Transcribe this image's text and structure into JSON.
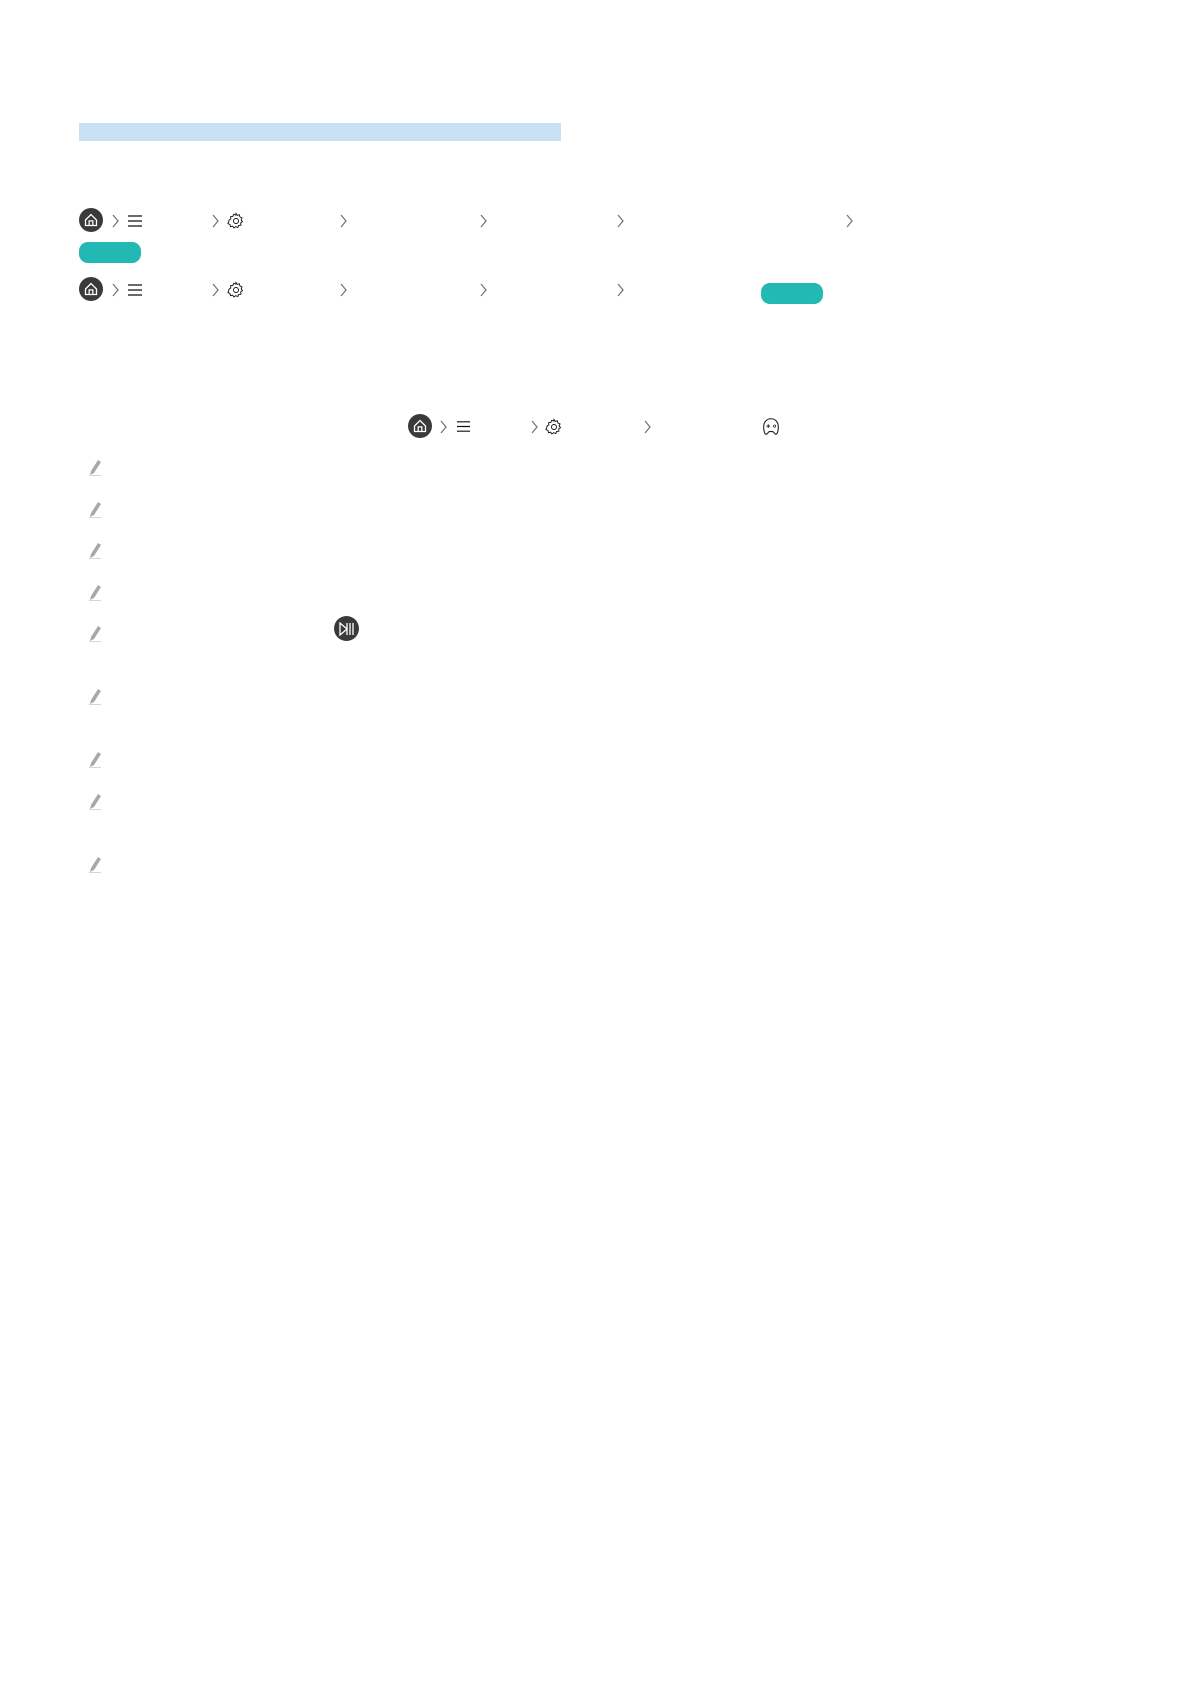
{
  "colors": {
    "section_highlight": "#c9dff3",
    "badge": "#22b8b4",
    "icon_dark": "#3a3a3a",
    "chevron": "#777777",
    "pencil": "#a8a8a8"
  },
  "paths": [
    {
      "icons": [
        "home-icon",
        "chevron-right-icon",
        "menu-icon",
        "chevron-right-icon",
        "gear-icon",
        "chevron-right-icon",
        "chevron-right-icon",
        "chevron-right-icon",
        "chevron-right-icon"
      ],
      "badge": true
    },
    {
      "icons": [
        "home-icon",
        "chevron-right-icon",
        "menu-icon",
        "chevron-right-icon",
        "gear-icon",
        "chevron-right-icon",
        "chevron-right-icon",
        "chevron-right-icon"
      ],
      "badge": true
    },
    {
      "icons": [
        "home-icon",
        "chevron-right-icon",
        "menu-icon",
        "chevron-right-icon",
        "gear-icon",
        "chevron-right-icon",
        "gamepad-icon"
      ],
      "badge": false
    }
  ],
  "notes": {
    "count": 9,
    "icon": "pencil-icon",
    "inline_icon": "play-pause-icon"
  }
}
